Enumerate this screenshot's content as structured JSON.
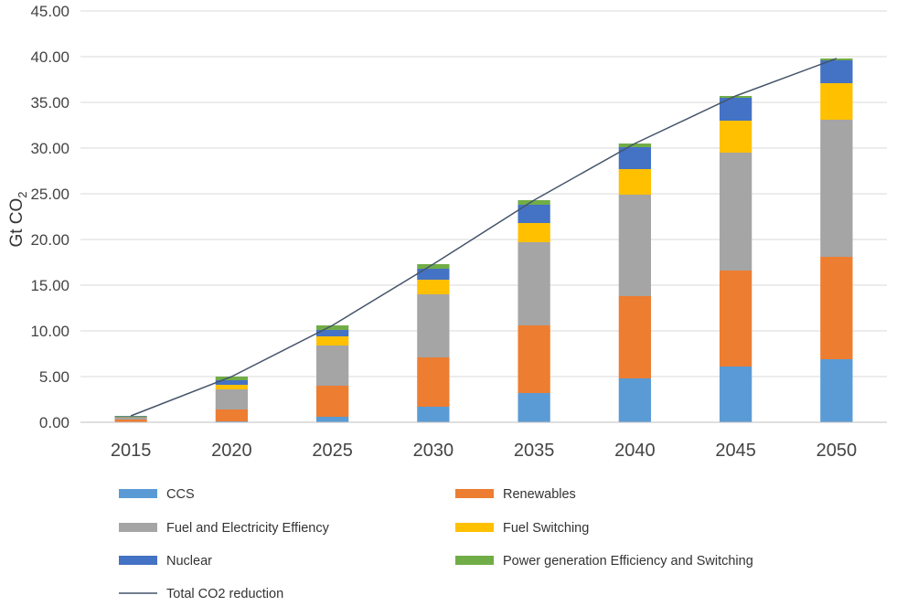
{
  "chart_data": {
    "type": "bar",
    "stacked": true,
    "title": "",
    "xlabel": "",
    "ylabel": "Gt CO",
    "ylabel_subscript": "2",
    "ylim": [
      0,
      45
    ],
    "yticks": [
      "0.00",
      "5.00",
      "10.00",
      "15.00",
      "20.00",
      "25.00",
      "30.00",
      "35.00",
      "40.00",
      "45.00"
    ],
    "grid": true,
    "legend_position": "bottom",
    "categories": [
      "2015",
      "2020",
      "2025",
      "2030",
      "2035",
      "2040",
      "2045",
      "2050"
    ],
    "series": [
      {
        "name": "CCS",
        "color": "#5B9BD5",
        "values": [
          0.0,
          0.1,
          0.6,
          1.7,
          3.2,
          4.8,
          6.1,
          6.9
        ]
      },
      {
        "name": "Renewables",
        "color": "#ED7D31",
        "values": [
          0.3,
          1.3,
          3.4,
          5.4,
          7.4,
          9.0,
          10.5,
          11.2
        ]
      },
      {
        "name": "Fuel and Electricity Effiency",
        "color": "#A5A5A5",
        "values": [
          0.2,
          2.2,
          4.4,
          6.9,
          9.1,
          11.1,
          12.9,
          15.0
        ]
      },
      {
        "name": "Fuel Switching",
        "color": "#FFC000",
        "values": [
          0.05,
          0.5,
          1.0,
          1.6,
          2.1,
          2.8,
          3.5,
          4.0
        ]
      },
      {
        "name": "Nuclear",
        "color": "#4472C4",
        "values": [
          0.1,
          0.5,
          0.7,
          1.2,
          2.0,
          2.4,
          2.5,
          2.5
        ]
      },
      {
        "name": "Power generation Efficiency and Switching",
        "color": "#70AD47",
        "values": [
          0.05,
          0.4,
          0.5,
          0.5,
          0.5,
          0.4,
          0.2,
          0.2
        ]
      }
    ],
    "line_series": {
      "name": "Total CO2 reduction",
      "color": "#44546A",
      "values": [
        0.7,
        5.0,
        10.6,
        17.3,
        24.3,
        30.5,
        35.7,
        39.8
      ]
    }
  }
}
